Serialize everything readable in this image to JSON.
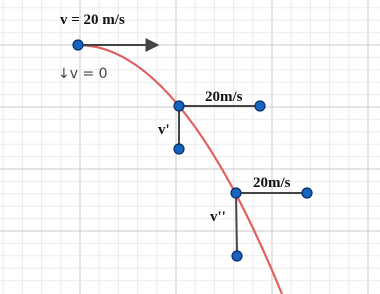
{
  "labels": {
    "initial_velocity": "v = 20 m/s",
    "initial_vertical": "↓v  = 0",
    "horizontal_1": "20m/s",
    "vertical_1": "v'",
    "horizontal_2": "20m/s",
    "vertical_2": "v''"
  }
}
